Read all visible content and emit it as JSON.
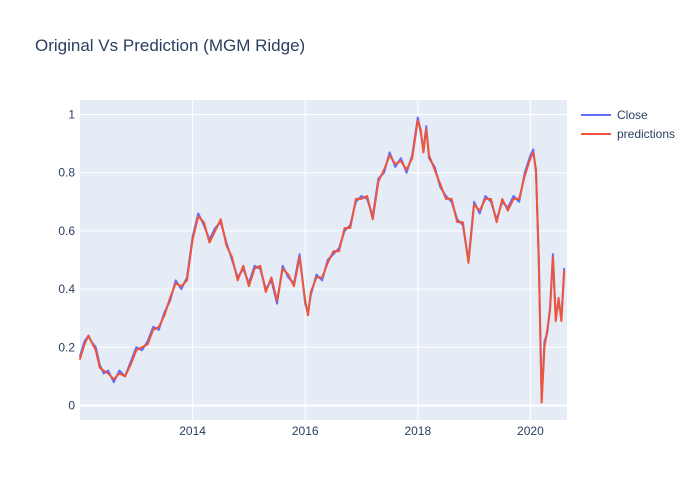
{
  "chart_data": {
    "type": "line",
    "title": "Original Vs Prediction (MGM Ridge)",
    "xlabel": "",
    "ylabel": "",
    "xlim": [
      2012.0,
      2020.65
    ],
    "ylim": [
      -0.05,
      1.05
    ],
    "x_ticks": [
      2014,
      2016,
      2018,
      2020
    ],
    "x_tick_labels": [
      "2014",
      "2016",
      "2018",
      "2020"
    ],
    "y_ticks": [
      0,
      0.2,
      0.4,
      0.6,
      0.8,
      1
    ],
    "y_tick_labels": [
      "0",
      "0.2",
      "0.4",
      "0.6",
      "0.8",
      "1"
    ],
    "grid": true,
    "legend_position": "top-right",
    "colors": {
      "plot_bg": "#e5ecf6",
      "grid": "#ffffff",
      "text": "#2a3f5f"
    },
    "series": [
      {
        "name": "Close",
        "color": "#636efa",
        "x": [
          2012.0,
          2012.08,
          2012.15,
          2012.2,
          2012.28,
          2012.35,
          2012.42,
          2012.5,
          2012.6,
          2012.7,
          2012.8,
          2012.9,
          2013.0,
          2013.1,
          2013.2,
          2013.3,
          2013.4,
          2013.5,
          2013.6,
          2013.7,
          2013.8,
          2013.9,
          2014.0,
          2014.1,
          2014.2,
          2014.3,
          2014.4,
          2014.5,
          2014.6,
          2014.7,
          2014.8,
          2014.9,
          2015.0,
          2015.1,
          2015.2,
          2015.3,
          2015.4,
          2015.5,
          2015.6,
          2015.7,
          2015.8,
          2015.9,
          2016.0,
          2016.05,
          2016.1,
          2016.2,
          2016.3,
          2016.4,
          2016.5,
          2016.6,
          2016.7,
          2016.8,
          2016.9,
          2017.0,
          2017.1,
          2017.2,
          2017.3,
          2017.4,
          2017.5,
          2017.6,
          2017.7,
          2017.8,
          2017.9,
          2018.0,
          2018.05,
          2018.1,
          2018.15,
          2018.2,
          2018.3,
          2018.4,
          2018.5,
          2018.6,
          2018.7,
          2018.8,
          2018.9,
          2019.0,
          2019.1,
          2019.2,
          2019.3,
          2019.4,
          2019.5,
          2019.6,
          2019.7,
          2019.8,
          2019.9,
          2020.0,
          2020.05,
          2020.1,
          2020.15,
          2020.2,
          2020.25,
          2020.3,
          2020.35,
          2020.4,
          2020.45,
          2020.5,
          2020.55,
          2020.6
        ],
        "y": [
          0.17,
          0.22,
          0.24,
          0.22,
          0.2,
          0.14,
          0.11,
          0.12,
          0.08,
          0.12,
          0.1,
          0.15,
          0.2,
          0.19,
          0.22,
          0.27,
          0.26,
          0.32,
          0.36,
          0.43,
          0.4,
          0.44,
          0.58,
          0.66,
          0.62,
          0.57,
          0.61,
          0.63,
          0.56,
          0.5,
          0.44,
          0.47,
          0.42,
          0.48,
          0.47,
          0.4,
          0.43,
          0.35,
          0.48,
          0.44,
          0.42,
          0.52,
          0.35,
          0.32,
          0.38,
          0.45,
          0.43,
          0.5,
          0.52,
          0.54,
          0.6,
          0.62,
          0.7,
          0.72,
          0.71,
          0.65,
          0.78,
          0.8,
          0.87,
          0.82,
          0.85,
          0.8,
          0.86,
          0.99,
          0.94,
          0.88,
          0.96,
          0.85,
          0.82,
          0.75,
          0.72,
          0.7,
          0.64,
          0.62,
          0.5,
          0.7,
          0.66,
          0.72,
          0.7,
          0.64,
          0.7,
          0.68,
          0.72,
          0.7,
          0.8,
          0.86,
          0.88,
          0.8,
          0.5,
          0.02,
          0.22,
          0.25,
          0.34,
          0.52,
          0.3,
          0.36,
          0.3,
          0.47
        ]
      },
      {
        "name": "predictions",
        "color": "#ef553b",
        "x": [
          2012.0,
          2012.08,
          2012.15,
          2012.2,
          2012.28,
          2012.35,
          2012.42,
          2012.5,
          2012.6,
          2012.7,
          2012.8,
          2012.9,
          2013.0,
          2013.1,
          2013.2,
          2013.3,
          2013.4,
          2013.5,
          2013.6,
          2013.7,
          2013.8,
          2013.9,
          2014.0,
          2014.1,
          2014.2,
          2014.3,
          2014.4,
          2014.5,
          2014.6,
          2014.7,
          2014.8,
          2014.9,
          2015.0,
          2015.1,
          2015.2,
          2015.3,
          2015.4,
          2015.5,
          2015.6,
          2015.7,
          2015.8,
          2015.9,
          2016.0,
          2016.05,
          2016.1,
          2016.2,
          2016.3,
          2016.4,
          2016.5,
          2016.6,
          2016.7,
          2016.8,
          2016.9,
          2017.0,
          2017.1,
          2017.2,
          2017.3,
          2017.4,
          2017.5,
          2017.6,
          2017.7,
          2017.8,
          2017.9,
          2018.0,
          2018.05,
          2018.1,
          2018.15,
          2018.2,
          2018.3,
          2018.4,
          2018.5,
          2018.6,
          2018.7,
          2018.8,
          2018.9,
          2019.0,
          2019.1,
          2019.2,
          2019.3,
          2019.4,
          2019.5,
          2019.6,
          2019.7,
          2019.8,
          2019.9,
          2020.0,
          2020.05,
          2020.1,
          2020.15,
          2020.2,
          2020.25,
          2020.3,
          2020.35,
          2020.4,
          2020.45,
          2020.5,
          2020.55,
          2020.6
        ],
        "y": [
          0.16,
          0.21,
          0.24,
          0.22,
          0.19,
          0.13,
          0.12,
          0.11,
          0.09,
          0.11,
          0.1,
          0.14,
          0.19,
          0.2,
          0.21,
          0.26,
          0.27,
          0.31,
          0.37,
          0.42,
          0.41,
          0.43,
          0.57,
          0.65,
          0.63,
          0.56,
          0.6,
          0.64,
          0.55,
          0.51,
          0.43,
          0.48,
          0.41,
          0.47,
          0.48,
          0.39,
          0.44,
          0.36,
          0.47,
          0.45,
          0.41,
          0.51,
          0.36,
          0.31,
          0.39,
          0.44,
          0.44,
          0.49,
          0.53,
          0.53,
          0.61,
          0.61,
          0.71,
          0.71,
          0.72,
          0.64,
          0.77,
          0.81,
          0.86,
          0.83,
          0.84,
          0.81,
          0.85,
          0.98,
          0.95,
          0.87,
          0.95,
          0.86,
          0.81,
          0.76,
          0.71,
          0.71,
          0.63,
          0.63,
          0.49,
          0.69,
          0.67,
          0.71,
          0.71,
          0.63,
          0.71,
          0.67,
          0.71,
          0.71,
          0.79,
          0.85,
          0.87,
          0.81,
          0.48,
          0.01,
          0.2,
          0.26,
          0.33,
          0.51,
          0.29,
          0.37,
          0.29,
          0.46
        ]
      }
    ]
  }
}
